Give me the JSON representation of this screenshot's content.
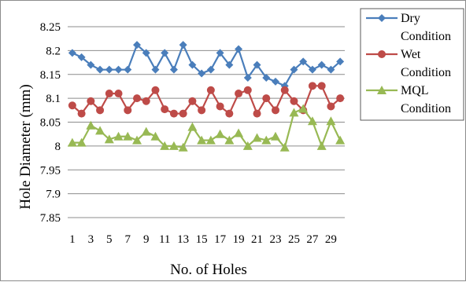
{
  "chart_data": {
    "type": "line",
    "xlabel": "No. of Holes",
    "ylabel": "Hole Diameter (mm)",
    "ylim": [
      7.85,
      8.25
    ],
    "yticks": [
      "7.85",
      "7.9",
      "7.95",
      "8",
      "8.05",
      "8.1",
      "8.15",
      "8.2",
      "8.25"
    ],
    "x": [
      1,
      2,
      3,
      4,
      5,
      6,
      7,
      8,
      9,
      10,
      11,
      12,
      13,
      14,
      15,
      16,
      17,
      18,
      19,
      20,
      21,
      22,
      23,
      24,
      25,
      26,
      27,
      28,
      29,
      30
    ],
    "xticks": [
      "1",
      "3",
      "5",
      "7",
      "9",
      "11",
      "13",
      "15",
      "17",
      "19",
      "21",
      "23",
      "25",
      "27",
      "29"
    ],
    "grid": "horizontal",
    "legend_position": "top-right",
    "series": [
      {
        "name": "Dry Condition",
        "legend_lines": [
          "Dry",
          "Condition"
        ],
        "color": "#4a7ebb",
        "marker": "diamond",
        "values": [
          8.195,
          8.186,
          8.17,
          8.16,
          8.16,
          8.16,
          8.16,
          8.212,
          8.195,
          8.16,
          8.195,
          8.16,
          8.212,
          8.17,
          8.152,
          8.16,
          8.195,
          8.17,
          8.203,
          8.143,
          8.17,
          8.143,
          8.135,
          8.126,
          8.16,
          8.177,
          8.16,
          8.17,
          8.16,
          8.177
        ]
      },
      {
        "name": "Wet Condition",
        "legend_lines": [
          "Wet",
          "Condition"
        ],
        "color": "#be4b48",
        "marker": "circle",
        "values": [
          8.085,
          8.068,
          8.094,
          8.075,
          8.11,
          8.11,
          8.075,
          8.1,
          8.094,
          8.117,
          8.077,
          8.068,
          8.068,
          8.094,
          8.075,
          8.117,
          8.083,
          8.068,
          8.11,
          8.117,
          8.068,
          8.1,
          8.075,
          8.117,
          8.094,
          8.075,
          8.126,
          8.126,
          8.083,
          8.1
        ]
      },
      {
        "name": "MQL Condition",
        "legend_lines": [
          "MQL",
          "Condition"
        ],
        "color": "#98b954",
        "marker": "triangle",
        "values": [
          8.007,
          8.007,
          8.043,
          8.032,
          8.014,
          8.02,
          8.02,
          8.012,
          8.03,
          8.02,
          8.0,
          8.0,
          7.997,
          8.04,
          8.012,
          8.012,
          8.025,
          8.012,
          8.027,
          8.0,
          8.017,
          8.012,
          8.02,
          7.997,
          8.07,
          8.078,
          8.052,
          8.0,
          8.052,
          8.012
        ]
      }
    ]
  }
}
